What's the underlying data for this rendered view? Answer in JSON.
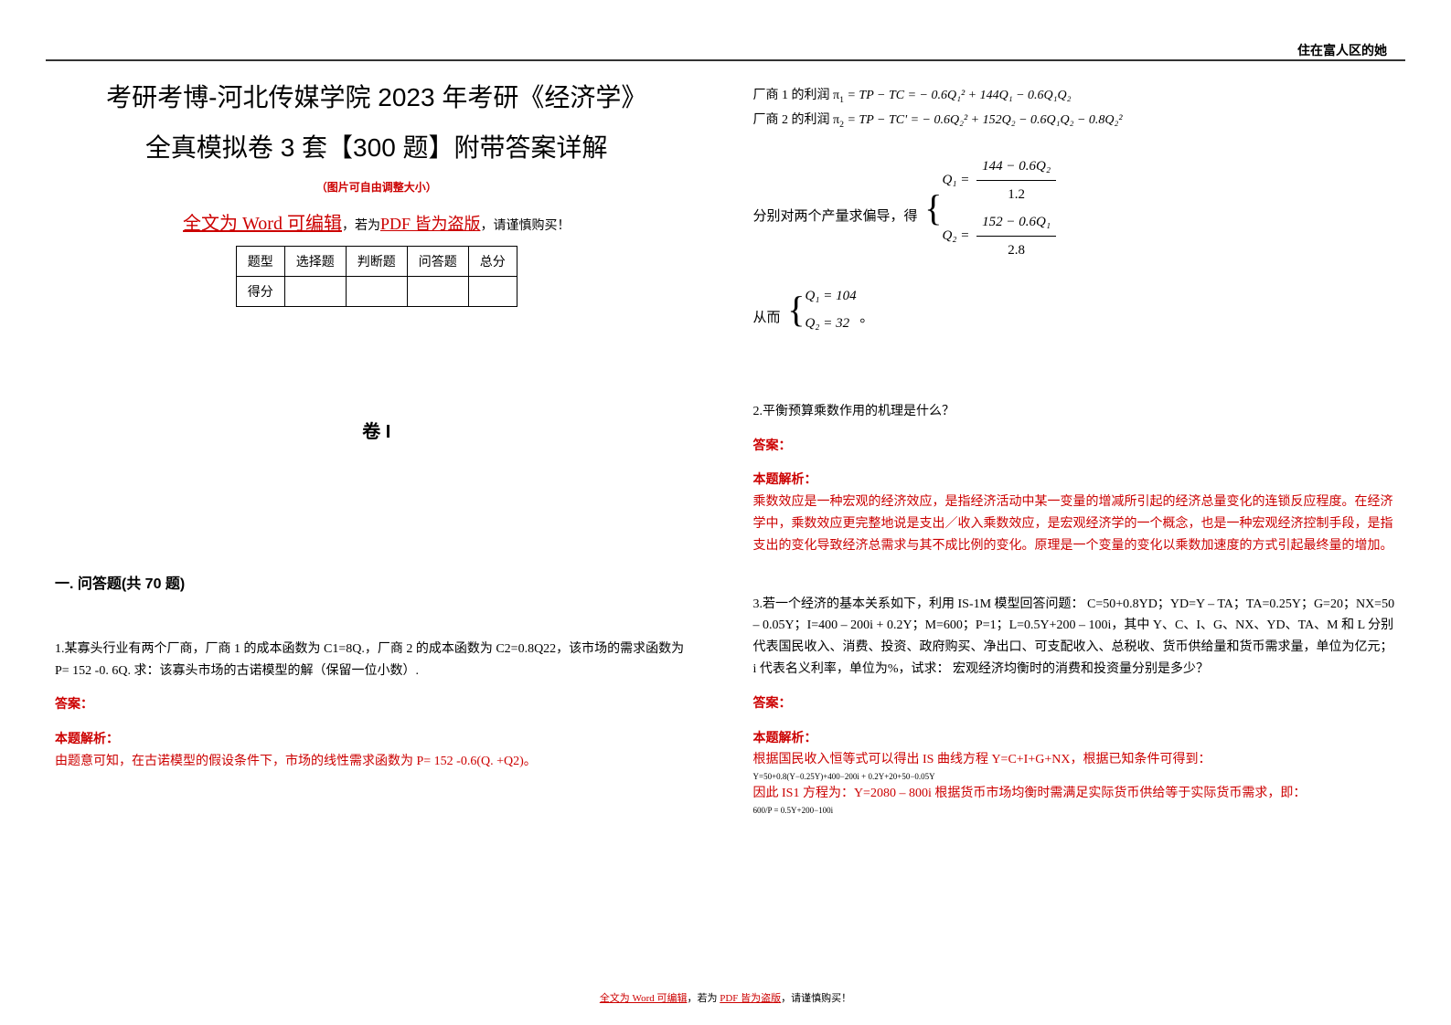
{
  "header_right": "住在富人区的她",
  "main_title_l1": "考研考博-河北传媒学院 2023 年考研《经济学》",
  "main_title_l2": "全真模拟卷 3 套【300 题】附带答案详解",
  "size_note": "（图片可自由调整大小）",
  "word_prefix": "全文为 Word 可编辑",
  "word_mid": "，若为",
  "word_pdf": "PDF 皆为盗版",
  "word_suffix": "，请谨慎购买！",
  "table": {
    "headers": [
      "题型",
      "选择题",
      "判断题",
      "问答题",
      "总分"
    ],
    "row_label": "得分"
  },
  "juan_label": "卷 I",
  "section_title": "一. 问答题(共 70 题)",
  "q1": {
    "text": "1.某寡头行业有两个厂商，厂商 1 的成本函数为 C1=8Q.，厂商 2 的成本函数为 C2=0.8Q22，该市场的需求函数为 P= 152 -0. 6Q. 求：该寡头市场的古诺模型的解（保留一位小数）.",
    "ans_label": "答案：",
    "ana_label": "本题解析：",
    "ana_text": "由题意可知，在古诺模型的假设条件下，市场的线性需求函数为 P= 152 -0.6(Q. +Q2)。"
  },
  "profit": {
    "l1_pre": "厂商 1 的利润 π",
    "l1_eq": " = TP − TC = − 0.6Q₁² + 144Q₁ − 0.6Q₁Q₂",
    "l2_pre": "厂商 2 的利润 π",
    "l2_eq": " = TP − TC' = − 0.6Q₂² + 152Q₂ − 0.6Q₁Q₂ − 0.8Q₂²"
  },
  "partial_label": "分别对两个产量求偏导，得",
  "eq1_lhs": "Q₁ =",
  "eq1_num": "144 − 0.6Q₂",
  "eq1_den": "1.2",
  "eq2_lhs": "Q₂ =",
  "eq2_num": "152 − 0.6Q₁",
  "eq2_den": "2.8",
  "result_label": "从而",
  "r1": "Q₁ = 104",
  "r2": "Q₂ = 32",
  "result_suffix": "。",
  "q2": {
    "text": "2.平衡预算乘数作用的机理是什么？",
    "ans_label": "答案：",
    "ana_label": "本题解析：",
    "ana_text": "乘数效应是一种宏观的经济效应，是指经济活动中某一变量的增减所引起的经济总量变化的连锁反应程度。在经济学中，乘数效应更完整地说是支出／收入乘数效应，是宏观经济学的一个概念，也是一种宏观经济控制手段，是指支出的变化导致经济总需求与其不成比例的变化。原理是一个变量的变化以乘数加速度的方式引起最终量的增加。"
  },
  "q3": {
    "text": "3.若一个经济的基本关系如下，利用 IS-1M 模型回答问题： C=50+0.8YD；YD=Y – TA；TA=0.25Y；G=20；NX=50 – 0.05Y；I=400 – 200i + 0.2Y；M=600；P=1；L=0.5Y+200 – 100i，其中 Y、C、I、G、NX、YD、TA、M 和 L 分别代表国民收入、消费、投资、政府购买、净出口、可支配收入、总税收、货币供给量和货币需求量，单位为亿元；i 代表名义利率，单位为%，试求： 宏观经济均衡时的消费和投资量分别是多少？",
    "ans_label": "答案：",
    "ana_label": "本题解析：",
    "ana_text1": "根据国民收入恒等式可以得出 IS 曲线方程 Y=C+I+G+NX，根据已知条件可得到：",
    "tiny1": "Y=50+0.8(Y−0.25Y)+400−200i + 0.2Y+20+50−0.05Y",
    "ana_text2": "因此 IS1 方程为：Y=2080 – 800i 根据货币市场均衡时需满足实际货币供给等于实际货币需求，即：",
    "tiny2": "600/P = 0.5Y+200−100i"
  },
  "footer": {
    "p1": "全文为 Word 可编辑",
    "p2": "，若为 ",
    "p3": "PDF 皆为盗版",
    "p4": "，请谨慎购买！"
  },
  "colors": {
    "accent": "#cc0000",
    "text": "#000000",
    "bg": "#ffffff"
  }
}
